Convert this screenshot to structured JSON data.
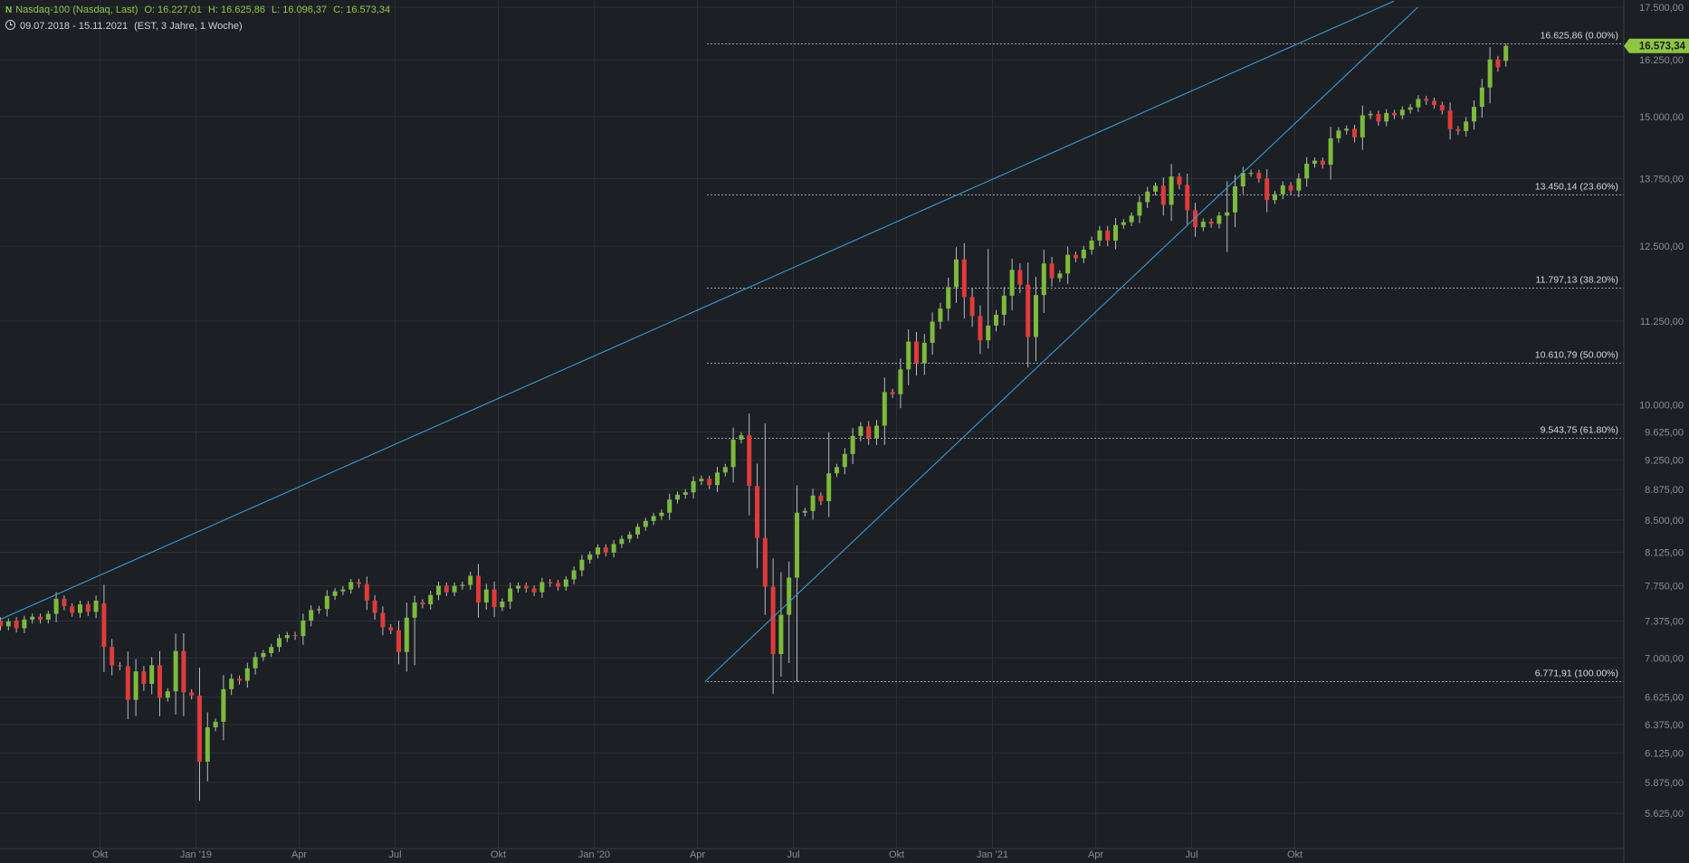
{
  "header": {
    "logo": "N",
    "instrument": "Nasdaq-100 (Nasdaq, Last)",
    "open": "O: 16.227,01",
    "high": "H: 16.625,86",
    "low": "L: 16.096,37",
    "close": "C: 16.573,34",
    "clock_icon": "clock-icon",
    "range": "09.07.2018 - 15.11.2021",
    "settings": "(EST, 3 Jahre, 1 Woche)"
  },
  "colors": {
    "background": "#1c1f24",
    "up": "#7cba3b",
    "down": "#e03a3a",
    "trendline": "#3a9bd2",
    "grid": "#2c3036",
    "text": "#c8c8c8",
    "price_tag": "#8ec641"
  },
  "chart_data": {
    "type": "candlestick",
    "y_scale": "log",
    "ylim": [
      5450,
      17500
    ],
    "x_ticks": [
      "Okt",
      "Jan '19",
      "Apr",
      "Jul",
      "Okt",
      "Jan '20",
      "Apr",
      "Jul",
      "Okt",
      "Jan '21",
      "Apr",
      "Jul",
      "Okt"
    ],
    "y_ticks": [
      "5.625,00",
      "5.875,00",
      "6.125,00",
      "6.375,00",
      "6.625,00",
      "7.000,00",
      "7.375,00",
      "7.750,00",
      "8.125,00",
      "8.500,00",
      "8.875,00",
      "9.250,00",
      "9.625,00",
      "10.000,00",
      "11.250,00",
      "12.500,00",
      "13.750,00",
      "15.000,00",
      "16.250,00",
      "17.500,00"
    ],
    "last_price": "16.573,34",
    "fibonacci": [
      {
        "label": "16.625,86 (0.00%)",
        "value": 16625.86
      },
      {
        "label": "13.450,14 (23.60%)",
        "value": 13450.14
      },
      {
        "label": "11.797,13 (38.20%)",
        "value": 11797.13
      },
      {
        "label": "10.610,79 (50.00%)",
        "value": 10610.79
      },
      {
        "label": "9.543,75 (61.80%)",
        "value": 9543.75
      },
      {
        "label": "6.771,91 (100.00%)",
        "value": 6771.91
      }
    ],
    "trendlines": [
      {
        "from": {
          "week": 0,
          "value": 7390
        },
        "to": {
          "week": 175,
          "value": 17650
        }
      },
      {
        "from": {
          "week": 88.5,
          "value": 6772
        },
        "to": {
          "week": 178,
          "value": 17500
        }
      }
    ],
    "closes": [
      7320,
      7370,
      7300,
      7390,
      7420,
      7390,
      7450,
      7610,
      7530,
      7460,
      7550,
      7470,
      7590,
      7110,
      6930,
      6920,
      6600,
      6870,
      6750,
      6930,
      6620,
      6680,
      7070,
      6670,
      6640,
      6050,
      6350,
      6400,
      6700,
      6800,
      6780,
      6900,
      7010,
      7050,
      7110,
      7200,
      7230,
      7220,
      7380,
      7490,
      7500,
      7640,
      7690,
      7710,
      7790,
      7770,
      7590,
      7460,
      7310,
      7280,
      7060,
      7410,
      7570,
      7550,
      7650,
      7750,
      7680,
      7750,
      7760,
      7860,
      7570,
      7710,
      7520,
      7580,
      7720,
      7750,
      7720,
      7680,
      7790,
      7780,
      7740,
      7820,
      7920,
      8040,
      8100,
      8180,
      8120,
      8220,
      8280,
      8330,
      8420,
      8490,
      8550,
      8590,
      8750,
      8810,
      8840,
      8980,
      9010,
      8930,
      9090,
      9160,
      9520,
      9580,
      8920,
      8290,
      7740,
      7040,
      7440,
      7840,
      8590,
      8610,
      8800,
      8730,
      9080,
      9160,
      9330,
      9570,
      9700,
      9540,
      9710,
      10180,
      10150,
      10510,
      10930,
      10600,
      10910,
      11240,
      11450,
      11800,
      12270,
      11640,
      11330,
      10950,
      11180,
      11350,
      11660,
      12090,
      11840,
      11000,
      11670,
      12200,
      11950,
      12030,
      12350,
      12290,
      12440,
      12600,
      12780,
      12600,
      12880,
      12930,
      13050,
      13300,
      13500,
      13610,
      13250,
      13790,
      13630,
      13150,
      12840,
      12940,
      12900,
      13050,
      13110,
      13600,
      13860,
      13860,
      13750,
      13340,
      13450,
      13620,
      13520,
      13750,
      14040,
      14100,
      14020,
      14550,
      14710,
      14750,
      14570,
      15030,
      15060,
      14900,
      15080,
      15030,
      15150,
      15200,
      15380,
      15340,
      15250,
      15130,
      14740,
      14700,
      14900,
      15210,
      15630,
      16260,
      16080,
      16573
    ],
    "opens": [
      7380,
      7320,
      7380,
      7300,
      7390,
      7420,
      7390,
      7450,
      7610,
      7530,
      7460,
      7550,
      7470,
      7560,
      7110,
      6930,
      6920,
      6600,
      6870,
      6750,
      6930,
      6620,
      6680,
      7070,
      6670,
      6640,
      6050,
      6350,
      6400,
      6700,
      6800,
      6780,
      6900,
      7010,
      7050,
      7110,
      7200,
      7230,
      7220,
      7380,
      7490,
      7500,
      7640,
      7690,
      7710,
      7790,
      7770,
      7590,
      7460,
      7310,
      7280,
      7060,
      7410,
      7570,
      7550,
      7650,
      7750,
      7680,
      7750,
      7760,
      7860,
      7570,
      7710,
      7520,
      7580,
      7720,
      7750,
      7720,
      7680,
      7790,
      7780,
      7740,
      7820,
      7920,
      8040,
      8100,
      8180,
      8120,
      8220,
      8280,
      8330,
      8420,
      8490,
      8550,
      8590,
      8750,
      8810,
      8840,
      8980,
      9010,
      8930,
      9090,
      9160,
      9520,
      9580,
      8920,
      8290,
      7740,
      7040,
      7440,
      7840,
      8590,
      8610,
      8800,
      8730,
      9080,
      9160,
      9330,
      9570,
      9700,
      9540,
      9710,
      10180,
      10150,
      10510,
      10930,
      10600,
      10910,
      11240,
      11450,
      11800,
      12270,
      11640,
      11330,
      10950,
      11180,
      11350,
      11660,
      12090,
      11840,
      11000,
      11670,
      12200,
      11950,
      12030,
      12350,
      12290,
      12440,
      12600,
      12780,
      12600,
      12880,
      12930,
      13050,
      13300,
      13500,
      13610,
      13250,
      13790,
      13630,
      13150,
      12840,
      12940,
      12900,
      13050,
      13110,
      13600,
      13860,
      13860,
      13750,
      13340,
      13450,
      13620,
      13520,
      13750,
      14040,
      14100,
      14020,
      14550,
      14710,
      14750,
      14570,
      15030,
      15060,
      14900,
      15080,
      15030,
      15150,
      15200,
      15380,
      15340,
      15250,
      15130,
      14740,
      14700,
      14900,
      15210,
      15630,
      16260,
      16227
    ]
  }
}
